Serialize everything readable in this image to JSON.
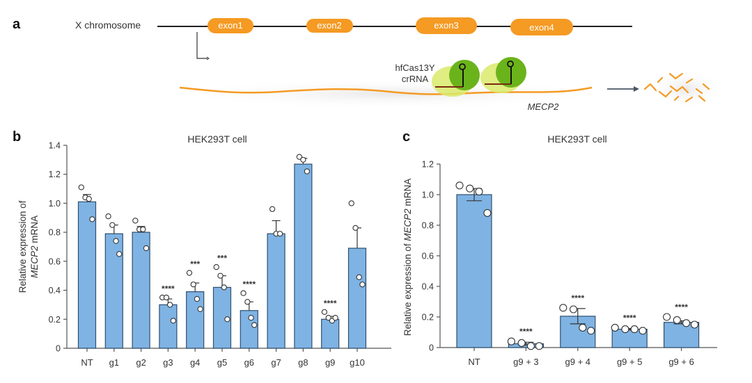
{
  "panel_a": {
    "letter": "a",
    "chromosome_label": "X chromosome",
    "exons": [
      "exon1",
      "exon2",
      "exon3",
      "exon4"
    ],
    "protein_label_line1": "hfCas13Y",
    "protein_label_line2": "crRNA",
    "transcript_label": "MECP2",
    "colors": {
      "exon": "#f59a23",
      "rna": "#f59a23",
      "cas": "#6bb31b",
      "halo": "#d9ea6b",
      "line": "#222222",
      "arrow": "#4a5566"
    }
  },
  "panel_b": {
    "letter": "b"
  },
  "panel_c": {
    "letter": "c"
  },
  "colors": {
    "bar_fill": "#7fb3e3",
    "bar_stroke": "#2f4f6f",
    "axis": "#555555"
  },
  "chart_data": [
    {
      "type": "bar",
      "title": "HEK293T cell",
      "xlabel": "",
      "ylabel_line1": "Relative expression of",
      "ylabel_line2": "MECP2 mRNA",
      "ylim": [
        0,
        1.4
      ],
      "yticks": [
        "0",
        "0.2",
        "0.4",
        "0.6",
        "0.8",
        "1.0",
        "1.2",
        "1.4"
      ],
      "categories": [
        "NT",
        "g1",
        "g2",
        "g3",
        "g4",
        "g5",
        "g6",
        "g7",
        "g8",
        "g9",
        "g10"
      ],
      "values": [
        1.01,
        0.79,
        0.8,
        0.3,
        0.39,
        0.42,
        0.26,
        0.79,
        1.27,
        0.2,
        0.69
      ],
      "errors": [
        0.05,
        0.06,
        0.04,
        0.04,
        0.06,
        0.08,
        0.06,
        0.09,
        0.04,
        0.02,
        0.14
      ],
      "points": [
        [
          1.11,
          1.04,
          1.03,
          0.89
        ],
        [
          0.91,
          0.85,
          0.74,
          0.65
        ],
        [
          0.88,
          0.82,
          0.82,
          0.69
        ],
        [
          0.35,
          0.35,
          0.3,
          0.19
        ],
        [
          0.52,
          0.44,
          0.34,
          0.27
        ],
        [
          0.56,
          0.5,
          0.42,
          0.2
        ],
        [
          0.38,
          0.32,
          0.21,
          0.16
        ],
        [
          0.96,
          0.79,
          0.79
        ],
        [
          1.32,
          1.3,
          1.22
        ],
        [
          0.25,
          0.21,
          0.19,
          0.21
        ],
        [
          1.0,
          0.83,
          0.49,
          0.44
        ]
      ],
      "annotations": [
        "",
        "",
        "",
        "****",
        "***",
        "***",
        "****",
        "",
        "",
        "****",
        ""
      ],
      "grid": false
    },
    {
      "type": "bar",
      "title": "HEK293T cell",
      "xlabel": "",
      "ylabel": "Relative expression of MECP2 mRNA",
      "ylim": [
        0,
        1.2
      ],
      "yticks": [
        "0",
        "0.2",
        "0.4",
        "0.6",
        "0.8",
        "1.0",
        "1.2"
      ],
      "categories": [
        "NT",
        "g9 + 3",
        "g9 + 4",
        "g9 + 5",
        "g9 + 6"
      ],
      "values": [
        1.0,
        0.025,
        0.205,
        0.12,
        0.165
      ],
      "errors": [
        0.04,
        0.01,
        0.05,
        0.005,
        0.01
      ],
      "points": [
        [
          1.06,
          1.04,
          1.02,
          0.88
        ],
        [
          0.04,
          0.03,
          0.01,
          0.01
        ],
        [
          0.26,
          0.25,
          0.13,
          0.11
        ],
        [
          0.13,
          0.12,
          0.12,
          0.11
        ],
        [
          0.2,
          0.18,
          0.16,
          0.15
        ]
      ],
      "annotations": [
        "",
        "****",
        "****",
        "****",
        "****"
      ],
      "grid": false
    }
  ]
}
